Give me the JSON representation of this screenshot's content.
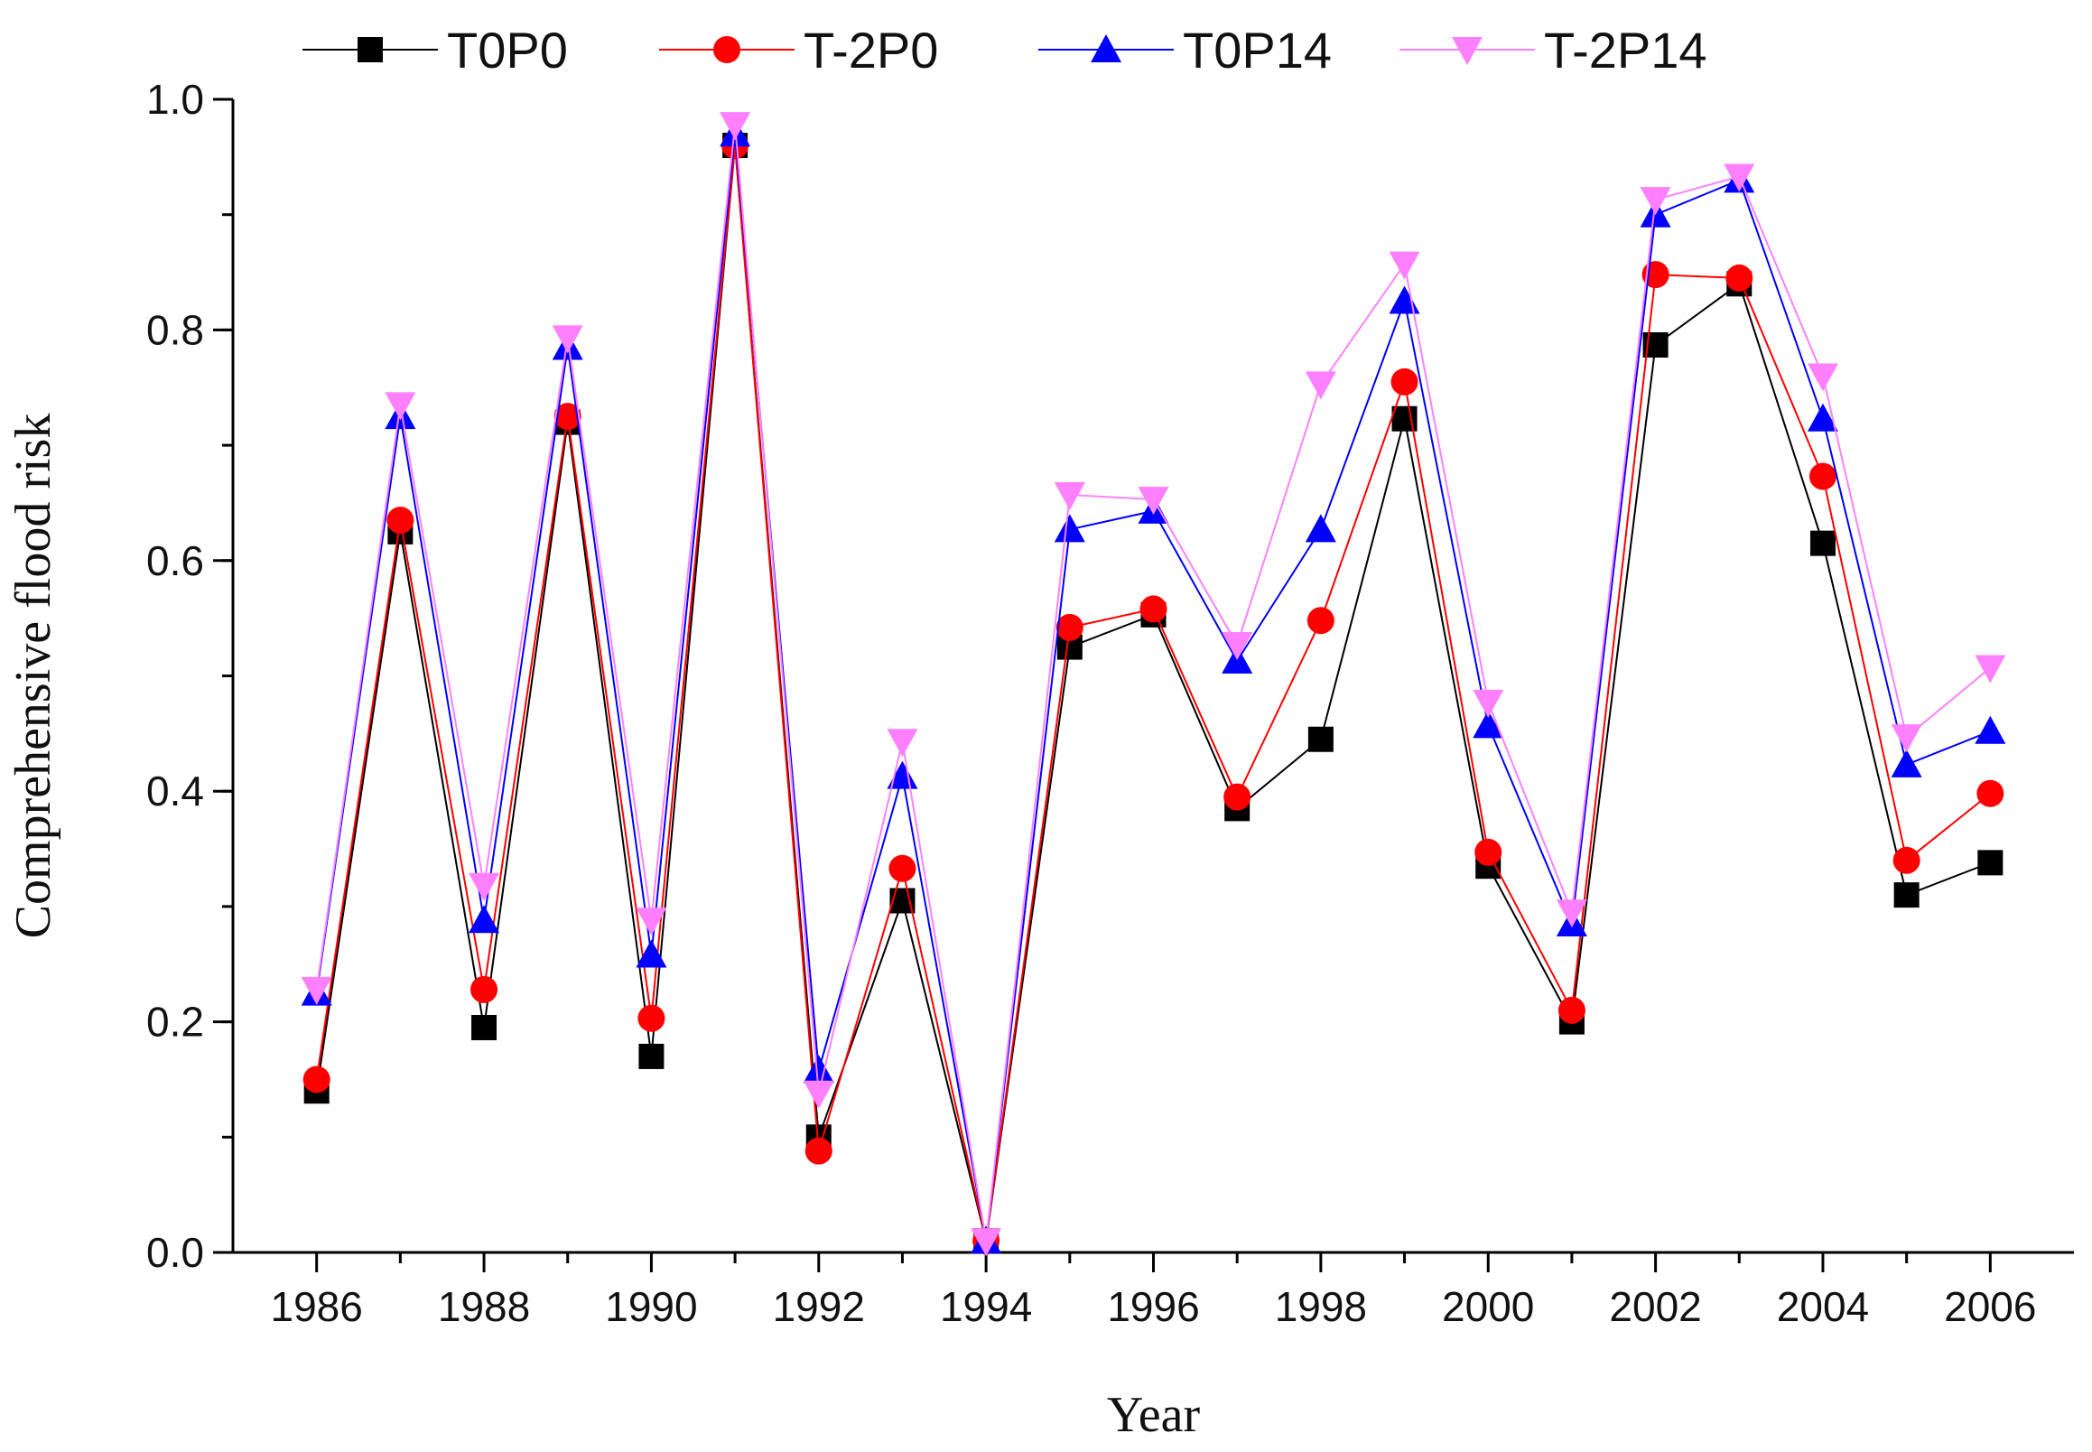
{
  "chart_data": {
    "type": "line",
    "title": "",
    "xlabel": "Year",
    "ylabel": "Comprehensive flood risk",
    "xlim": [
      1985,
      2007
    ],
    "ylim": [
      0.0,
      1.0
    ],
    "xticks": [
      "1986",
      "1988",
      "1990",
      "1992",
      "1994",
      "1996",
      "1998",
      "2000",
      "2002",
      "2004",
      "2006"
    ],
    "yticks": [
      "0.0",
      "0.2",
      "0.4",
      "0.6",
      "0.8",
      "1.0"
    ],
    "legend_position": "top",
    "x": [
      1986,
      1987,
      1988,
      1989,
      1990,
      1991,
      1992,
      1993,
      1994,
      1995,
      1996,
      1997,
      1998,
      1999,
      2000,
      2001,
      2002,
      2003,
      2004,
      2005,
      2006
    ],
    "series": [
      {
        "name": "T0P0",
        "color": "#000000",
        "marker": "square",
        "values": [
          0.14,
          0.625,
          0.195,
          0.72,
          0.17,
          0.96,
          0.1,
          0.305,
          0.01,
          0.525,
          0.553,
          0.385,
          0.445,
          0.723,
          0.335,
          0.2,
          0.787,
          0.84,
          0.615,
          0.31,
          0.338
        ]
      },
      {
        "name": "T-2P0",
        "color": "#ff0000",
        "marker": "circle",
        "values": [
          0.15,
          0.635,
          0.228,
          0.725,
          0.203,
          0.96,
          0.088,
          0.333,
          0.01,
          0.542,
          0.558,
          0.395,
          0.548,
          0.755,
          0.347,
          0.21,
          0.848,
          0.845,
          0.673,
          0.34,
          0.398
        ]
      },
      {
        "name": "T0P14",
        "color": "#0000ff",
        "marker": "triangle-up",
        "values": [
          0.225,
          0.725,
          0.288,
          0.785,
          0.258,
          0.97,
          0.158,
          0.413,
          0.01,
          0.627,
          0.643,
          0.513,
          0.627,
          0.825,
          0.457,
          0.285,
          0.9,
          0.93,
          0.723,
          0.423,
          0.452
        ]
      },
      {
        "name": "T-2P14",
        "color": "#ff80ff",
        "marker": "triangle-down",
        "values": [
          0.228,
          0.735,
          0.318,
          0.793,
          0.288,
          0.978,
          0.138,
          0.443,
          0.01,
          0.657,
          0.653,
          0.527,
          0.753,
          0.857,
          0.477,
          0.295,
          0.913,
          0.933,
          0.76,
          0.447,
          0.507
        ]
      }
    ]
  }
}
